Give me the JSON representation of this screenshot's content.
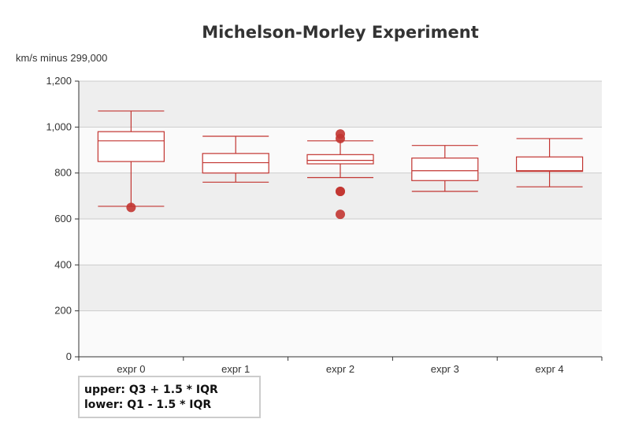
{
  "chart_data": {
    "type": "boxplot",
    "title": "Michelson-Morley Experiment",
    "ylabel": "km/s minus 299,000",
    "ylim": [
      0,
      1200
    ],
    "yticks": [
      0,
      200,
      400,
      600,
      800,
      1000,
      1200
    ],
    "ytick_labels": [
      "0",
      "200",
      "400",
      "600",
      "800",
      "1,000",
      "1,200"
    ],
    "categories": [
      "expr 0",
      "expr 1",
      "expr 2",
      "expr 3",
      "expr 4"
    ],
    "boxes": [
      {
        "category": "expr 0",
        "lower": 655,
        "q1": 850,
        "median": 940,
        "q3": 980,
        "upper": 1070
      },
      {
        "category": "expr 1",
        "lower": 760,
        "q1": 800,
        "median": 845,
        "q3": 885,
        "upper": 960
      },
      {
        "category": "expr 2",
        "lower": 780,
        "q1": 840,
        "median": 855,
        "q3": 880,
        "upper": 940
      },
      {
        "category": "expr 3",
        "lower": 720,
        "q1": 767,
        "median": 810,
        "q3": 865,
        "upper": 920
      },
      {
        "category": "expr 4",
        "lower": 740,
        "q1": 807,
        "median": 810,
        "q3": 870,
        "upper": 950
      }
    ],
    "outliers": [
      {
        "category": "expr 0",
        "value": 650
      },
      {
        "category": "expr 2",
        "value": 620
      },
      {
        "category": "expr 2",
        "value": 720
      },
      {
        "category": "expr 2",
        "value": 720
      },
      {
        "category": "expr 2",
        "value": 950
      },
      {
        "category": "expr 2",
        "value": 970
      }
    ],
    "note": [
      "upper: Q3 + 1.5 * IQR",
      "lower: Q1 - 1.5 * IQR"
    ],
    "grid": true,
    "colors": {
      "box": "#c23531",
      "band_dark": "#eeeeee",
      "band_light": "#fafafa",
      "grid": "#cccccc",
      "axis": "#333333"
    }
  }
}
